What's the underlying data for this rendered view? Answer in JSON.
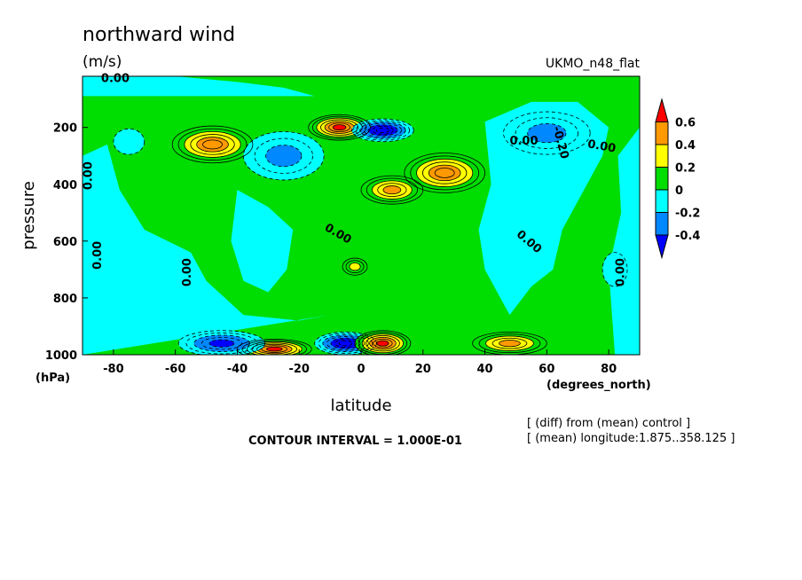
{
  "header": {
    "title": "northward wind",
    "units": "(m/s)",
    "dataset": "UKMO_n48_flat"
  },
  "footer": {
    "contour_interval": "CONTOUR INTERVAL = 1.000E-01",
    "note_line1": "[ (diff) from (mean) control ]",
    "note_line2": "[ (mean) longitude:1.875..358.125 ]"
  },
  "chart_data": {
    "type": "heatmap",
    "subtype": "filled contour (latitude-pressure cross section)",
    "title": "northward wind",
    "units": "(m/s)",
    "xlabel": "latitude",
    "xunits": "(degrees_north)",
    "ylabel": "pressure",
    "yunits": "(hPa)",
    "xlim": [
      -90,
      90
    ],
    "ylim": [
      1000,
      20
    ],
    "x_ticks": [
      -80,
      -60,
      -40,
      -20,
      0,
      20,
      40,
      60,
      80
    ],
    "y_ticks": [
      200,
      400,
      600,
      800,
      1000
    ],
    "contour_interval": 0.1,
    "contour_labels": [
      "0.00",
      "-0.20"
    ],
    "colorbar": {
      "levels": [
        "0.6",
        "0.4",
        "0.2",
        "0",
        "-0.2",
        "-0.4"
      ],
      "colors": [
        "#ff0000",
        "#ff9900",
        "#ffff00",
        "#00dd00",
        "#00ffff",
        "#0088ff",
        "#0000ff"
      ]
    },
    "fill_colors": {
      "gt_0.6": "#ff0000",
      "0.4_0.6": "#ff9900",
      "0.2_0.4": "#ffff00",
      "0_0.2": "#00dd00",
      "m0.2_0": "#00ffff",
      "m0.4_m0.2": "#0088ff",
      "lt_m0.4": "#0000ff"
    },
    "features": [
      {
        "lat": -48,
        "p": 260,
        "value": 0.55
      },
      {
        "lat": -28,
        "p": 980,
        "value": 0.7
      },
      {
        "lat": -7,
        "p": 200,
        "value": 0.7
      },
      {
        "lat": 7,
        "p": 210,
        "value": -0.7
      },
      {
        "lat": -5,
        "p": 960,
        "value": -0.7
      },
      {
        "lat": 7,
        "p": 960,
        "value": 0.7
      },
      {
        "lat": 27,
        "p": 360,
        "value": 0.55
      },
      {
        "lat": 10,
        "p": 420,
        "value": 0.5
      },
      {
        "lat": 60,
        "p": 220,
        "value": -0.35
      },
      {
        "lat": -25,
        "p": 300,
        "value": -0.35
      },
      {
        "lat": 48,
        "p": 960,
        "value": 0.5
      },
      {
        "lat": -45,
        "p": 960,
        "value": -0.45
      },
      {
        "lat": -75,
        "p": 250,
        "value": -0.1
      },
      {
        "lat": 82,
        "p": 700,
        "value": -0.1
      },
      {
        "lat": -2,
        "p": 690,
        "value": 0.35
      }
    ]
  }
}
